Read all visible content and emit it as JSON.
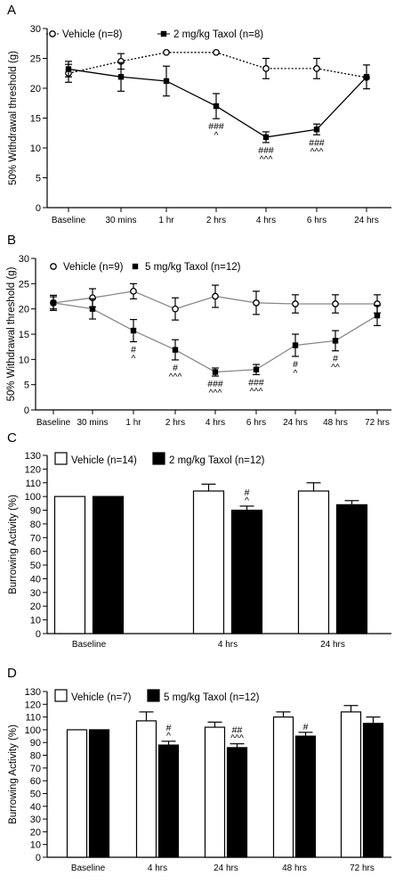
{
  "chart_data": [
    {
      "type": "line",
      "panel_label": "A",
      "ylabel": "50% Withdrawal threshold (g)",
      "ylim": [
        0,
        30
      ],
      "yticks": [
        0,
        5,
        10,
        15,
        20,
        25,
        30
      ],
      "categories": [
        "Baseline",
        "30 mins",
        "1 hr",
        "2 hrs",
        "4 hrs",
        "6 hrs",
        "24 hrs"
      ],
      "series": [
        {
          "name": "Vehicle (n=8)",
          "marker": "open-circle",
          "line": "dotted",
          "values": [
            22.5,
            24.5,
            26,
            26,
            23.3,
            23.3,
            21.8
          ],
          "errors": [
            1.5,
            1.3,
            0,
            0,
            1.7,
            1.7,
            0
          ]
        },
        {
          "name": "2 mg/kg Taxol (n=8)",
          "marker": "filled-square",
          "line": "solid",
          "values": [
            23.2,
            21.9,
            21.2,
            17.0,
            11.8,
            13.1,
            21.9
          ],
          "errors": [
            1.3,
            2.4,
            2.5,
            2.1,
            0.9,
            0.9,
            2.0
          ]
        }
      ],
      "annotations": [
        {
          "index": 3,
          "lines": [
            "###",
            "^"
          ]
        },
        {
          "index": 4,
          "lines": [
            "###",
            "^^^"
          ]
        },
        {
          "index": 5,
          "lines": [
            "###",
            "^^^"
          ]
        }
      ]
    },
    {
      "type": "line",
      "panel_label": "B",
      "ylabel": "50% Withdrawal threshold (g)",
      "ylim": [
        0,
        30
      ],
      "yticks": [
        0,
        5,
        10,
        15,
        20,
        25,
        30
      ],
      "categories": [
        "Baseline",
        "30 mins",
        "1 hr",
        "2 hrs",
        "4 hrs",
        "6 hrs",
        "24 hrs",
        "48 hrs",
        "72 hrs"
      ],
      "series": [
        {
          "name": "Vehicle (n=9)",
          "marker": "open-circle",
          "line": "grey",
          "values": [
            21.2,
            22.2,
            23.5,
            20.0,
            22.5,
            21.2,
            21.0,
            21.0,
            21.0
          ],
          "errors": [
            1.5,
            1.8,
            1.5,
            2.2,
            2.2,
            2.3,
            1.8,
            1.8,
            1.8
          ]
        },
        {
          "name": "5 mg/kg Taxol (n=12)",
          "marker": "filled-square",
          "line": "grey",
          "values": [
            21.2,
            20.0,
            15.7,
            11.9,
            7.5,
            8.0,
            12.8,
            13.7,
            18.7
          ],
          "errors": [
            1.2,
            2.0,
            2.2,
            2.0,
            0.8,
            1.0,
            2.2,
            2.0,
            2.0
          ]
        }
      ],
      "annotations": [
        {
          "index": 2,
          "lines": [
            "#",
            "^"
          ]
        },
        {
          "index": 3,
          "lines": [
            "#",
            "^^^"
          ]
        },
        {
          "index": 4,
          "lines": [
            "###",
            "^^^"
          ]
        },
        {
          "index": 5,
          "lines": [
            "###",
            "^^^"
          ]
        },
        {
          "index": 6,
          "lines": [
            "#",
            "^"
          ]
        },
        {
          "index": 7,
          "lines": [
            "#",
            "^^"
          ]
        }
      ]
    },
    {
      "type": "bar",
      "panel_label": "C",
      "ylabel": "Burrowing Activity (%)",
      "ylim": [
        0,
        130
      ],
      "yticks": [
        0,
        10,
        20,
        30,
        40,
        50,
        60,
        70,
        80,
        90,
        100,
        110,
        120,
        130
      ],
      "categories": [
        "Baseline",
        "4 hrs",
        "24 hrs"
      ],
      "series": [
        {
          "name": "Vehicle (n=14)",
          "fill": "#ffffff",
          "values": [
            100,
            104,
            104
          ],
          "errors": [
            0,
            5,
            6
          ]
        },
        {
          "name": "2 mg/kg Taxol (n=12)",
          "fill": "#000000",
          "values": [
            100,
            90,
            94
          ],
          "errors": [
            0,
            3,
            3
          ]
        }
      ],
      "annotations": [
        {
          "category": 1,
          "series": 1,
          "lines": [
            "#",
            "^"
          ]
        }
      ]
    },
    {
      "type": "bar",
      "panel_label": "D",
      "ylabel": "Burrowing Activity (%)",
      "ylim": [
        0,
        130
      ],
      "yticks": [
        0,
        10,
        20,
        30,
        40,
        50,
        60,
        70,
        80,
        90,
        100,
        110,
        120,
        130
      ],
      "categories": [
        "Baseline",
        "4 hrs",
        "24 hrs",
        "48 hrs",
        "72 hrs"
      ],
      "series": [
        {
          "name": "Vehicle (n=7)",
          "fill": "#ffffff",
          "values": [
            100,
            107,
            102,
            110,
            114
          ],
          "errors": [
            0,
            7,
            4,
            4,
            5
          ]
        },
        {
          "name": "5 mg/kg Taxol (n=12)",
          "fill": "#000000",
          "values": [
            100,
            88,
            86,
            95,
            105
          ],
          "errors": [
            0,
            3,
            3,
            3,
            5
          ]
        }
      ],
      "annotations": [
        {
          "category": 1,
          "series": 1,
          "lines": [
            "#",
            "^"
          ]
        },
        {
          "category": 2,
          "series": 1,
          "lines": [
            "##",
            "^^^"
          ]
        },
        {
          "category": 3,
          "series": 1,
          "lines": [
            "#"
          ]
        }
      ]
    }
  ]
}
